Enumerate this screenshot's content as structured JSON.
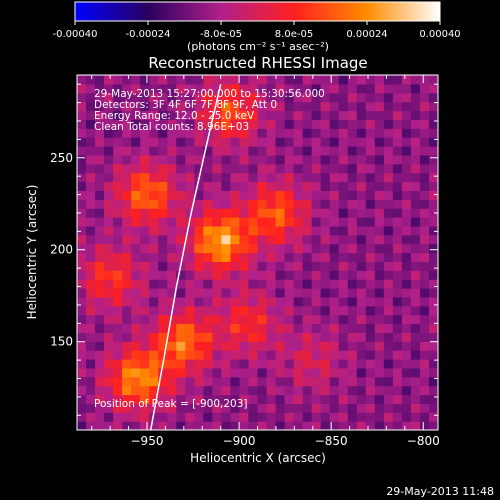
{
  "colorbar": {
    "tick_labels": [
      "-0.00040",
      "-0.00024",
      "-8.0e-05",
      "8.0e-05",
      "0.00024",
      "0.00040"
    ],
    "unit_label": "(photons cm⁻² s⁻¹ asec⁻²)",
    "range": [
      -0.0004,
      0.0004
    ],
    "colormap": [
      "#0000ff",
      "#2a0060",
      "#b0208a",
      "#ff2020",
      "#ff8c00",
      "#ffffff"
    ]
  },
  "chart_data": {
    "type": "heatmap",
    "title": "Reconstructed RHESSI Image",
    "xlabel": "Heliocentric X (arcsec)",
    "ylabel": "Heliocentric Y (arcsec)",
    "xlim": [
      -988,
      -792
    ],
    "ylim": [
      102,
      295
    ],
    "xticks": [
      -950,
      -900,
      -850,
      -800
    ],
    "xtick_labels": [
      "−950",
      "−900",
      "−850",
      "−800"
    ],
    "yticks": [
      150,
      200,
      250
    ],
    "ytick_labels": [
      "150",
      "200",
      "250"
    ],
    "grid": false,
    "legend": "none",
    "annotations": [
      "29-May-2013 15:27:00.000 to 15:30:56.000",
      "Detectors: 3F 4F 6F 7F 8F 9F, Att 0",
      "Energy Range: 12.0 - 25.0 keV",
      "Clean    Total counts: 8.96E+03"
    ],
    "peak_label": "Position of Peak = [-900,203]",
    "peak": [
      -900,
      203
    ],
    "limb_curve": [
      [
        -948,
        102
      ],
      [
        -941,
        140
      ],
      [
        -934,
        180
      ],
      [
        -926,
        220
      ],
      [
        -917,
        260
      ],
      [
        -910,
        290
      ]
    ],
    "intensity_field": {
      "blob_centers": [
        [
          -955,
          130
        ],
        [
          -930,
          150
        ],
        [
          -910,
          205
        ],
        [
          -880,
          220
        ],
        [
          -950,
          230
        ],
        [
          -905,
          275
        ],
        [
          -970,
          185
        ],
        [
          -895,
          160
        ],
        [
          -860,
          140
        ]
      ],
      "blob_amplitudes": [
        0.00036,
        0.00032,
        0.0004,
        0.00028,
        0.0003,
        0.00026,
        0.00022,
        0.0002,
        0.00012
      ]
    }
  },
  "timestamp": "29-May-2013 11:48"
}
